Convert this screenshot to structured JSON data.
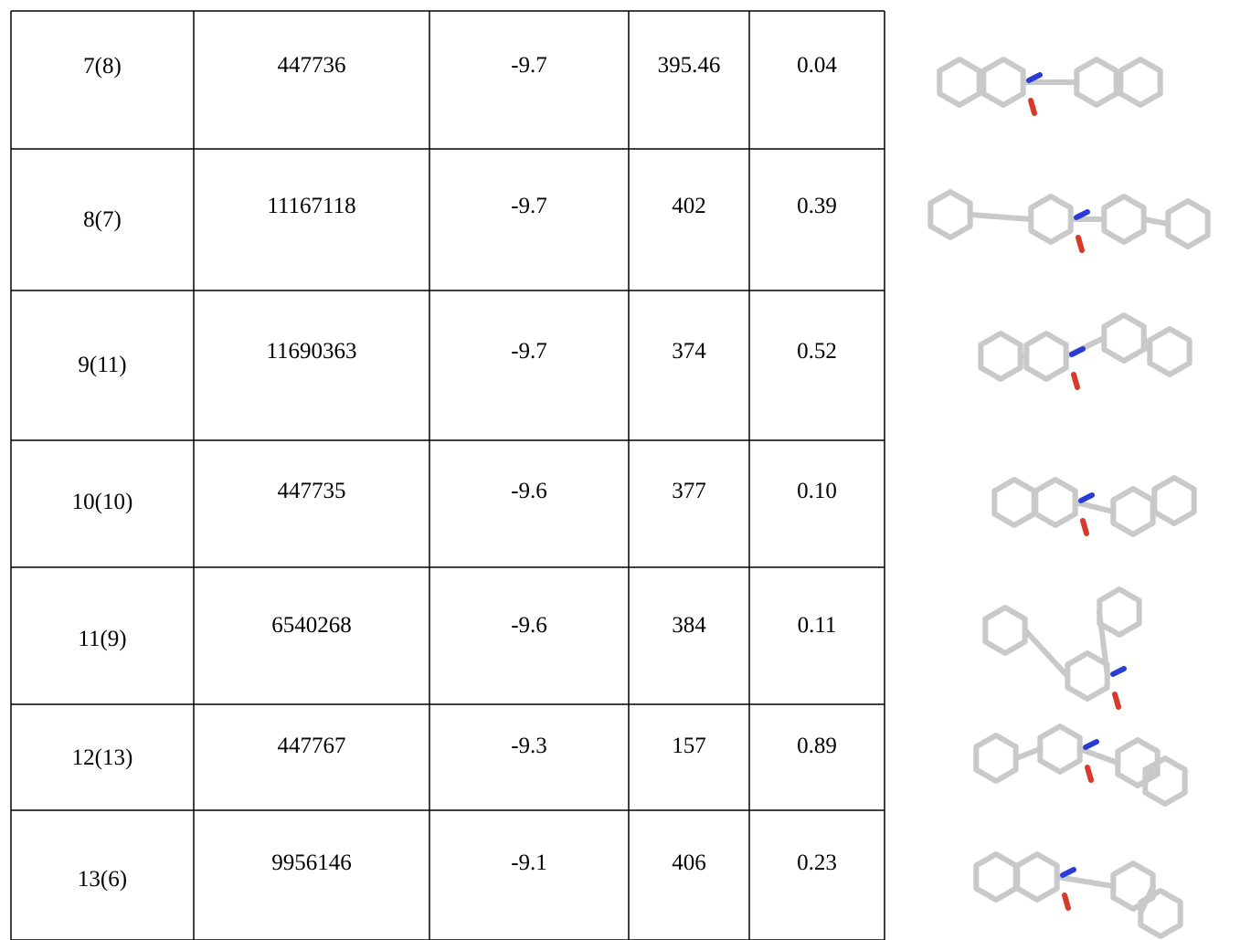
{
  "table": {
    "rows": [
      [
        "7(8)",
        "447736",
        "-9.7",
        "395.46",
        "0.04"
      ],
      [
        "8(7)",
        "11167118",
        "-9.7",
        "402",
        "0.39"
      ],
      [
        "9(11)",
        "11690363",
        "-9.7",
        "374",
        "0.52"
      ],
      [
        "10(10)",
        "447735",
        "-9.6",
        "377",
        "0.10"
      ],
      [
        "11(9)",
        "6540268",
        "-9.6",
        "384",
        "0.11"
      ],
      [
        "12(13)",
        "447767",
        "-9.3",
        "157",
        "0.89"
      ],
      [
        "13(6)",
        "9956146",
        "-9.1",
        "406",
        "0.23"
      ]
    ]
  }
}
